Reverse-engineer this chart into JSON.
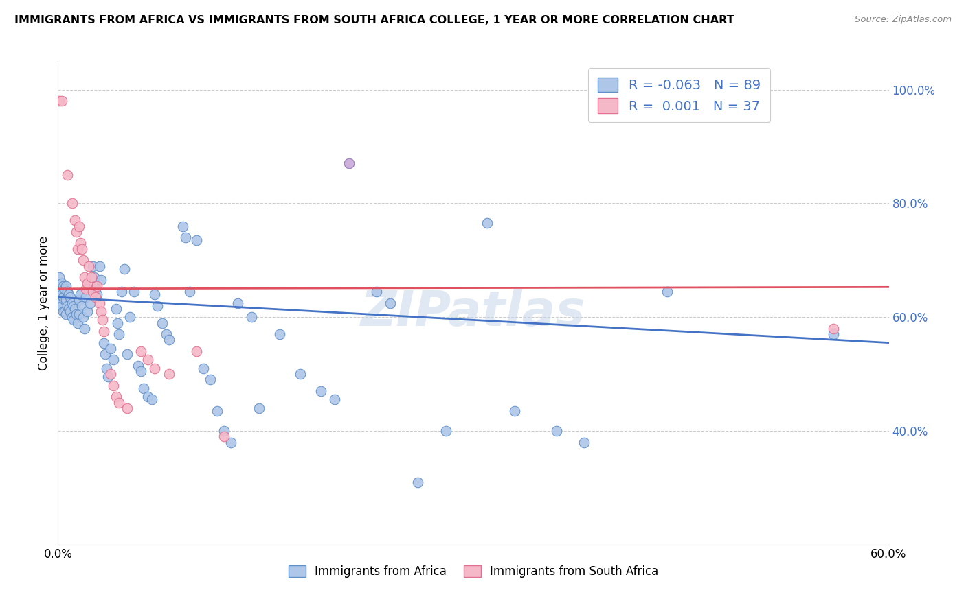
{
  "title": "IMMIGRANTS FROM AFRICA VS IMMIGRANTS FROM SOUTH AFRICA COLLEGE, 1 YEAR OR MORE CORRELATION CHART",
  "source": "Source: ZipAtlas.com",
  "ylabel": "College, 1 year or more",
  "xlim": [
    0.0,
    0.6
  ],
  "ylim": [
    0.2,
    1.05
  ],
  "yticks": [
    0.4,
    0.6,
    0.8,
    1.0
  ],
  "ytick_labels": [
    "40.0%",
    "60.0%",
    "80.0%",
    "100.0%"
  ],
  "xticks": [
    0.0,
    0.1,
    0.2,
    0.3,
    0.4,
    0.5,
    0.6
  ],
  "xtick_labels": [
    "0.0%",
    "",
    "",
    "",
    "",
    "",
    "60.0%"
  ],
  "color_blue_fill": "#aec6e8",
  "color_blue_edge": "#6090c8",
  "color_pink_fill": "#f5b8c8",
  "color_pink_edge": "#e07090",
  "color_blue_line": "#4472c4",
  "color_pink_line": "#e05060",
  "color_purple_fill": "#c8a8d8",
  "color_purple_edge": "#9070b0",
  "watermark": "ZIPatlas",
  "blue_scatter": [
    [
      0.001,
      0.67
    ],
    [
      0.002,
      0.65
    ],
    [
      0.002,
      0.625
    ],
    [
      0.003,
      0.66
    ],
    [
      0.003,
      0.64
    ],
    [
      0.003,
      0.62
    ],
    [
      0.004,
      0.655
    ],
    [
      0.004,
      0.635
    ],
    [
      0.004,
      0.61
    ],
    [
      0.005,
      0.65
    ],
    [
      0.005,
      0.63
    ],
    [
      0.005,
      0.61
    ],
    [
      0.006,
      0.655
    ],
    [
      0.006,
      0.63
    ],
    [
      0.006,
      0.605
    ],
    [
      0.007,
      0.645
    ],
    [
      0.007,
      0.62
    ],
    [
      0.008,
      0.64
    ],
    [
      0.008,
      0.615
    ],
    [
      0.009,
      0.635
    ],
    [
      0.009,
      0.61
    ],
    [
      0.01,
      0.625
    ],
    [
      0.01,
      0.6
    ],
    [
      0.011,
      0.62
    ],
    [
      0.011,
      0.595
    ],
    [
      0.012,
      0.615
    ],
    [
      0.013,
      0.605
    ],
    [
      0.014,
      0.59
    ],
    [
      0.015,
      0.63
    ],
    [
      0.015,
      0.605
    ],
    [
      0.016,
      0.64
    ],
    [
      0.017,
      0.62
    ],
    [
      0.018,
      0.6
    ],
    [
      0.019,
      0.58
    ],
    [
      0.02,
      0.635
    ],
    [
      0.021,
      0.61
    ],
    [
      0.022,
      0.65
    ],
    [
      0.023,
      0.625
    ],
    [
      0.025,
      0.69
    ],
    [
      0.026,
      0.67
    ],
    [
      0.027,
      0.65
    ],
    [
      0.028,
      0.64
    ],
    [
      0.03,
      0.69
    ],
    [
      0.031,
      0.665
    ],
    [
      0.033,
      0.555
    ],
    [
      0.034,
      0.535
    ],
    [
      0.035,
      0.51
    ],
    [
      0.036,
      0.495
    ],
    [
      0.038,
      0.545
    ],
    [
      0.04,
      0.525
    ],
    [
      0.042,
      0.615
    ],
    [
      0.043,
      0.59
    ],
    [
      0.044,
      0.57
    ],
    [
      0.046,
      0.645
    ],
    [
      0.048,
      0.685
    ],
    [
      0.05,
      0.535
    ],
    [
      0.052,
      0.6
    ],
    [
      0.055,
      0.645
    ],
    [
      0.058,
      0.515
    ],
    [
      0.06,
      0.505
    ],
    [
      0.062,
      0.475
    ],
    [
      0.065,
      0.46
    ],
    [
      0.068,
      0.455
    ],
    [
      0.07,
      0.64
    ],
    [
      0.072,
      0.62
    ],
    [
      0.075,
      0.59
    ],
    [
      0.078,
      0.57
    ],
    [
      0.08,
      0.56
    ],
    [
      0.09,
      0.76
    ],
    [
      0.092,
      0.74
    ],
    [
      0.095,
      0.645
    ],
    [
      0.1,
      0.735
    ],
    [
      0.105,
      0.51
    ],
    [
      0.11,
      0.49
    ],
    [
      0.115,
      0.435
    ],
    [
      0.12,
      0.4
    ],
    [
      0.125,
      0.38
    ],
    [
      0.13,
      0.625
    ],
    [
      0.14,
      0.6
    ],
    [
      0.145,
      0.44
    ],
    [
      0.16,
      0.57
    ],
    [
      0.175,
      0.5
    ],
    [
      0.19,
      0.47
    ],
    [
      0.2,
      0.455
    ],
    [
      0.23,
      0.645
    ],
    [
      0.24,
      0.625
    ],
    [
      0.26,
      0.31
    ],
    [
      0.28,
      0.4
    ],
    [
      0.31,
      0.765
    ],
    [
      0.33,
      0.435
    ],
    [
      0.36,
      0.4
    ],
    [
      0.38,
      0.38
    ],
    [
      0.44,
      0.645
    ],
    [
      0.56,
      0.57
    ]
  ],
  "pink_scatter": [
    [
      0.001,
      0.98
    ],
    [
      0.003,
      0.98
    ],
    [
      0.007,
      0.85
    ],
    [
      0.01,
      0.8
    ],
    [
      0.012,
      0.77
    ],
    [
      0.013,
      0.75
    ],
    [
      0.014,
      0.72
    ],
    [
      0.015,
      0.76
    ],
    [
      0.016,
      0.73
    ],
    [
      0.017,
      0.72
    ],
    [
      0.018,
      0.7
    ],
    [
      0.019,
      0.67
    ],
    [
      0.02,
      0.65
    ],
    [
      0.021,
      0.66
    ],
    [
      0.022,
      0.69
    ],
    [
      0.024,
      0.67
    ],
    [
      0.025,
      0.645
    ],
    [
      0.027,
      0.635
    ],
    [
      0.028,
      0.655
    ],
    [
      0.03,
      0.625
    ],
    [
      0.031,
      0.61
    ],
    [
      0.032,
      0.595
    ],
    [
      0.033,
      0.575
    ],
    [
      0.038,
      0.5
    ],
    [
      0.04,
      0.48
    ],
    [
      0.042,
      0.46
    ],
    [
      0.044,
      0.45
    ],
    [
      0.05,
      0.44
    ],
    [
      0.06,
      0.54
    ],
    [
      0.065,
      0.525
    ],
    [
      0.07,
      0.51
    ],
    [
      0.08,
      0.5
    ],
    [
      0.1,
      0.54
    ],
    [
      0.12,
      0.39
    ],
    [
      0.56,
      0.58
    ]
  ],
  "purple_scatter": [
    [
      0.21,
      0.87
    ]
  ],
  "blue_line_x": [
    0.0,
    0.6
  ],
  "blue_line_y": [
    0.635,
    0.555
  ],
  "pink_line_x": [
    0.0,
    0.6
  ],
  "pink_line_y": [
    0.65,
    0.653
  ]
}
